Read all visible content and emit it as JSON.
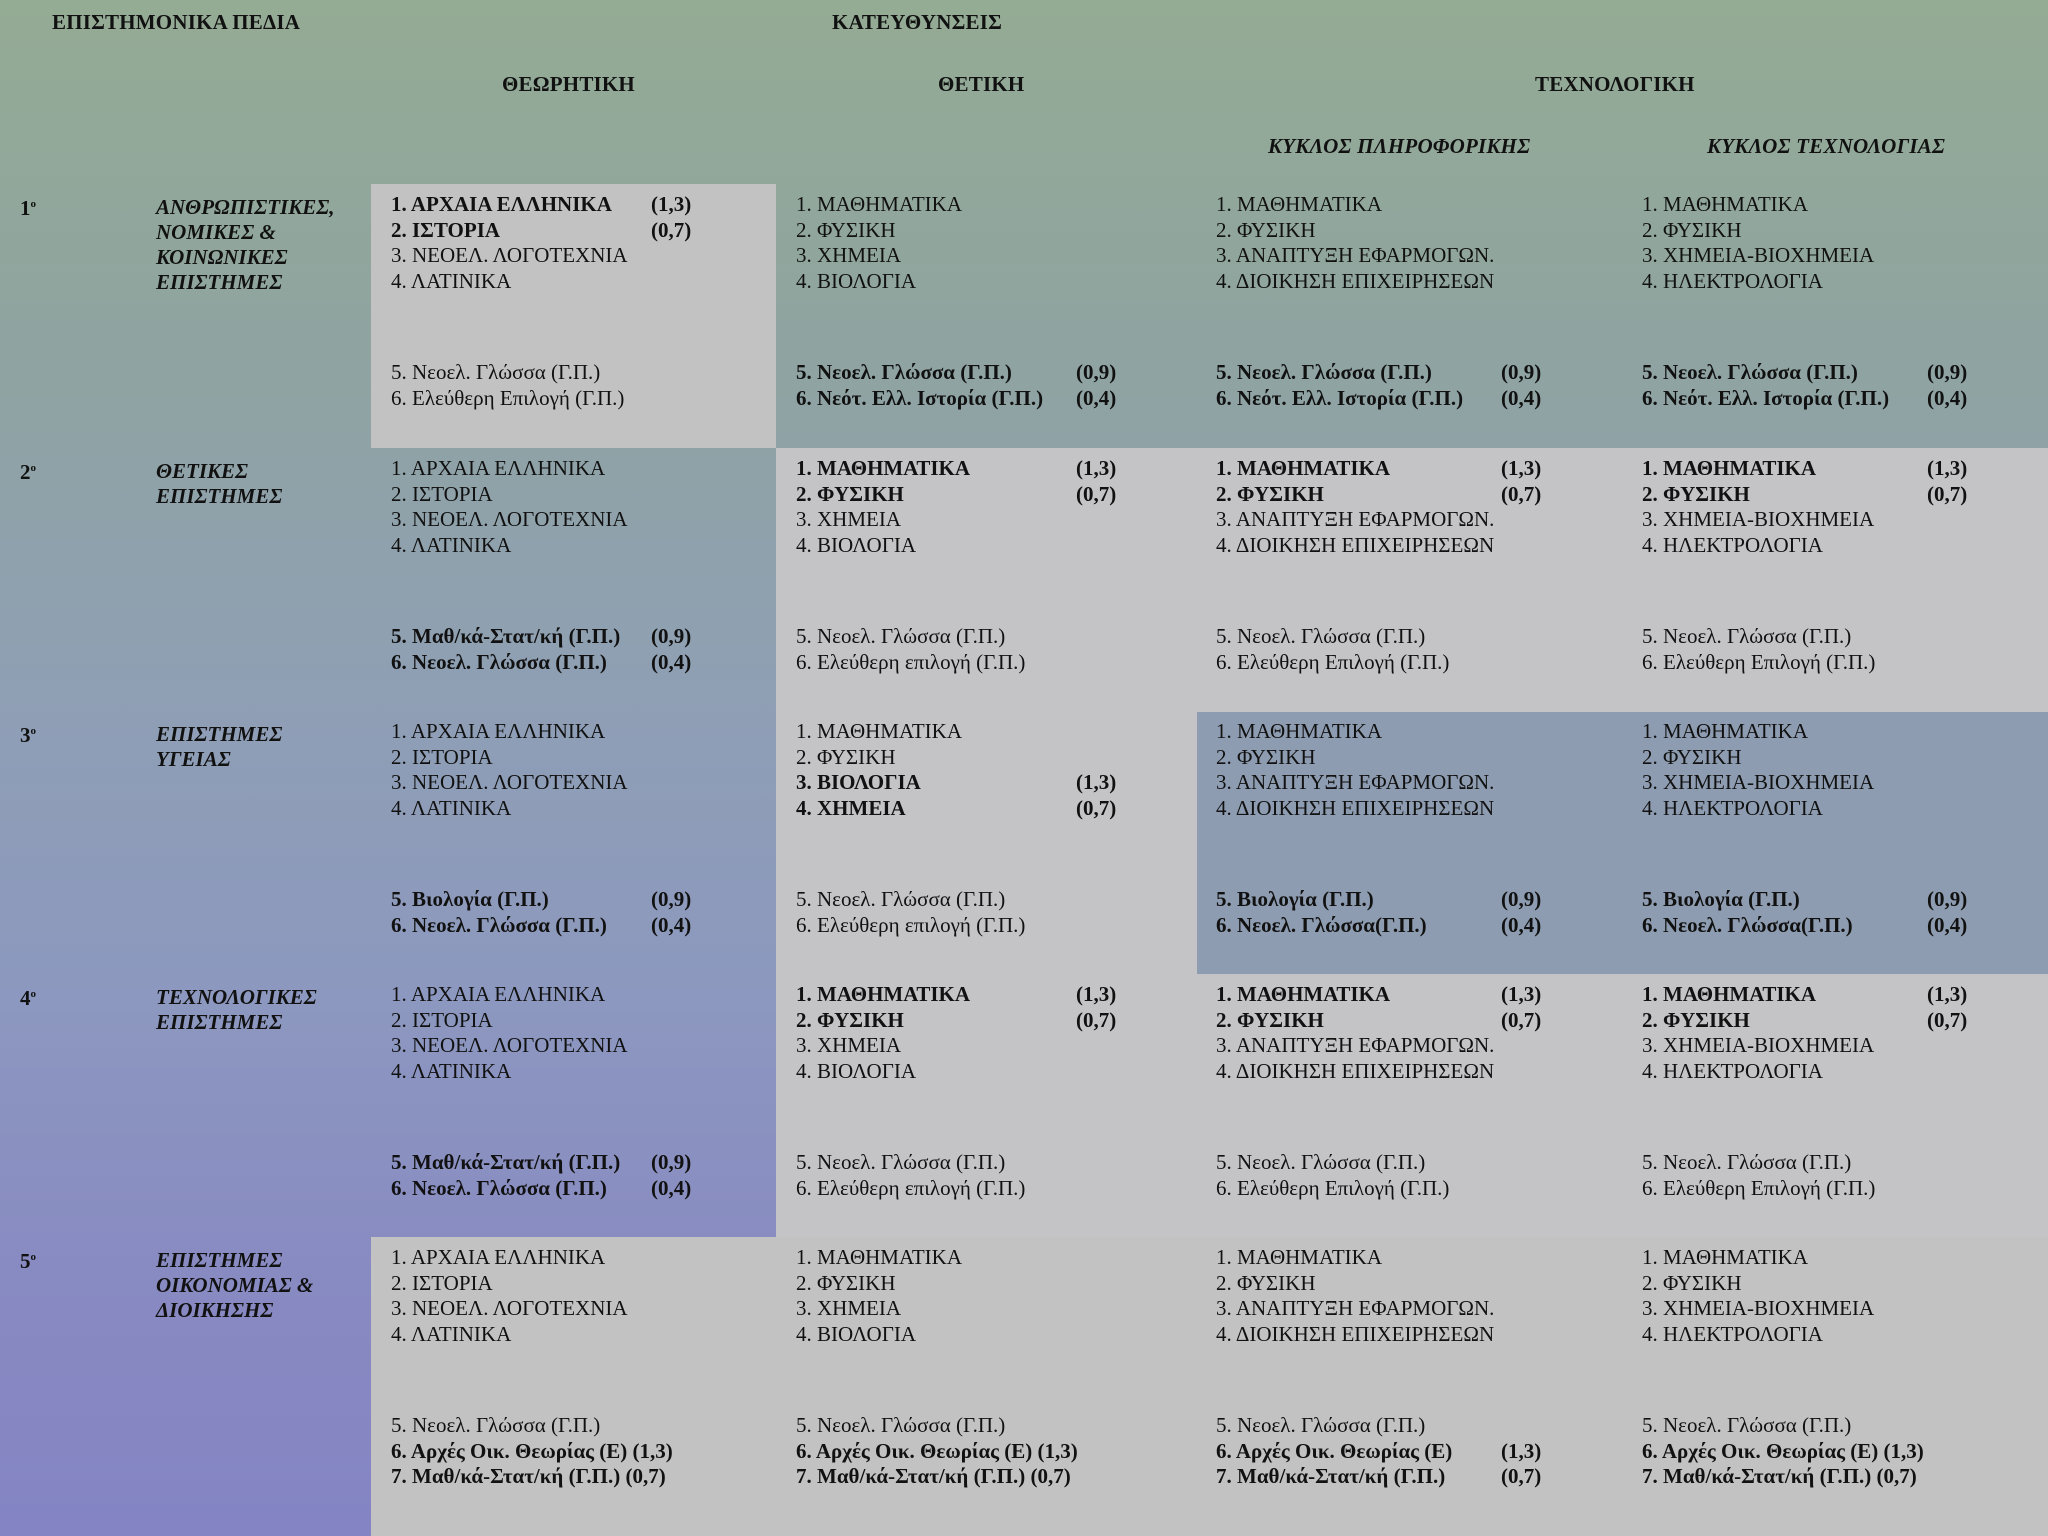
{
  "header": {
    "fields_title": "ΕΠΙΣΤΗΜΟΝΙΚΑ ΠΕΔΙΑ",
    "directions_title": "ΚΑΤΕΥΘΥΝΣΕΙΣ",
    "theoretical": "ΘΕΩΡΗΤΙΚΗ",
    "positive": "ΘΕΤΙΚΗ",
    "technological": "ΤΕΧΝΟΛΟΓΙΚΗ",
    "cycle_informatics": "ΚΥΚΛΟΣ ΠΛΗΡΟΦΟΡΙΚΗΣ",
    "cycle_technology": "ΚΥΚΛΟΣ ΤΕΧΝΟΛΟΓΙΑΣ"
  },
  "rows": [
    {
      "number": "1",
      "field": [
        "ΑΝΘΡΩΠΙΣΤΙΚΕΣ,",
        "ΝΟΜΙΚΕΣ &",
        "ΚΟΙΝΩΝΙΚΕΣ",
        "ΕΠΙΣΤΗΜΕΣ"
      ],
      "cells": [
        {
          "top": [
            {
              "t": "1. ΑΡΧΑΙΑ ΕΛΛΗΝΙΚΑ",
              "w": "(1,3)",
              "b": true
            },
            {
              "t": "2. ΙΣΤΟΡΙΑ",
              "w": "(0,7)",
              "b": true
            },
            {
              "t": "3. ΝΕΟΕΛ. ΛΟΓΟΤΕΧΝΙΑ",
              "w": "",
              "b": false
            },
            {
              "t": "4. ΛΑΤΙΝΙΚΑ",
              "w": "",
              "b": false
            }
          ],
          "bottom": [
            {
              "t": "5. Νεοελ. Γλώσσα (Γ.Π.)",
              "w": "",
              "b": false
            },
            {
              "t": "6. Ελεύθερη Επιλογή (Γ.Π.)",
              "w": "",
              "b": false
            }
          ]
        },
        {
          "top": [
            {
              "t": "1. ΜΑΘΗΜΑΤΙΚΑ",
              "w": "",
              "b": false
            },
            {
              "t": "2. ΦΥΣΙΚΗ",
              "w": "",
              "b": false
            },
            {
              "t": "3. ΧΗΜΕΙΑ",
              "w": "",
              "b": false
            },
            {
              "t": "4. ΒΙΟΛΟΓΙΑ",
              "w": "",
              "b": false
            }
          ],
          "bottom": [
            {
              "t": "5. Νεοελ. Γλώσσα (Γ.Π.)",
              "w": "(0,9)",
              "b": true
            },
            {
              "t": "6. Νεότ. Ελλ. Ιστορία (Γ.Π.)",
              "w": "(0,4)",
              "b": true
            }
          ]
        },
        {
          "top": [
            {
              "t": "1. ΜΑΘΗΜΑΤΙΚΑ",
              "w": "",
              "b": false
            },
            {
              "t": "2. ΦΥΣΙΚΗ",
              "w": "",
              "b": false
            },
            {
              "t": "3. ΑΝΑΠΤΥΞΗ ΕΦΑΡΜΟΓΩΝ.",
              "w": "",
              "b": false
            },
            {
              "t": "4. ΔΙΟΙΚΗΣΗ ΕΠΙΧΕΙΡΗΣΕΩΝ",
              "w": "",
              "b": false
            }
          ],
          "bottom": [
            {
              "t": "5. Νεοελ. Γλώσσα (Γ.Π.)",
              "w": "(0,9)",
              "b": true
            },
            {
              "t": "6. Νεότ. Ελλ. Ιστορία (Γ.Π.)",
              "w": "(0,4)",
              "b": true
            }
          ]
        },
        {
          "top": [
            {
              "t": "1. ΜΑΘΗΜΑΤΙΚΑ",
              "w": "",
              "b": false
            },
            {
              "t": "2. ΦΥΣΙΚΗ",
              "w": "",
              "b": false
            },
            {
              "t": "3. ΧΗΜΕΙΑ-ΒΙΟΧΗΜΕΙΑ",
              "w": "",
              "b": false
            },
            {
              "t": "4. ΗΛΕΚΤΡΟΛΟΓΙΑ",
              "w": "",
              "b": false
            }
          ],
          "bottom": [
            {
              "t": "5. Νεοελ. Γλώσσα (Γ.Π.)",
              "w": "(0,9)",
              "b": true
            },
            {
              "t": "6. Νεότ. Ελλ. Ιστορία (Γ.Π.)",
              "w": "(0,4)",
              "b": true
            }
          ]
        }
      ]
    },
    {
      "number": "2",
      "field": [
        "ΘΕΤΙΚΕΣ",
        "ΕΠΙΣΤΗΜΕΣ"
      ],
      "cells": [
        {
          "top": [
            {
              "t": "1. ΑΡΧΑΙΑ ΕΛΛΗΝΙΚΑ",
              "w": "",
              "b": false
            },
            {
              "t": "2. ΙΣΤΟΡΙΑ",
              "w": "",
              "b": false
            },
            {
              "t": "3. ΝΕΟΕΛ. ΛΟΓΟΤΕΧΝΙΑ",
              "w": "",
              "b": false
            },
            {
              "t": "4. ΛΑΤΙΝΙΚΑ",
              "w": "",
              "b": false
            }
          ],
          "bottom": [
            {
              "t": "5. Μαθ/κά-Στατ/κή (Γ.Π.)",
              "w": "(0,9)",
              "b": true
            },
            {
              "t": "6. Νεοελ. Γλώσσα (Γ.Π.)",
              "w": "(0,4)",
              "b": true
            }
          ]
        },
        {
          "top": [
            {
              "t": "1. ΜΑΘΗΜΑΤΙΚΑ",
              "w": "(1,3)",
              "b": true
            },
            {
              "t": "2. ΦΥΣΙΚΗ",
              "w": "(0,7)",
              "b": true
            },
            {
              "t": "3. ΧΗΜΕΙΑ",
              "w": "",
              "b": false
            },
            {
              "t": "4. ΒΙΟΛΟΓΙΑ",
              "w": "",
              "b": false
            }
          ],
          "bottom": [
            {
              "t": "5. Νεοελ. Γλώσσα (Γ.Π.)",
              "w": "",
              "b": false
            },
            {
              "t": "6. Ελεύθερη επιλογή (Γ.Π.)",
              "w": "",
              "b": false
            }
          ]
        },
        {
          "top": [
            {
              "t": "1. ΜΑΘΗΜΑΤΙΚΑ",
              "w": "(1,3)",
              "b": true
            },
            {
              "t": "2. ΦΥΣΙΚΗ",
              "w": "(0,7)",
              "b": true
            },
            {
              "t": "3. ΑΝΑΠΤΥΞΗ ΕΦΑΡΜΟΓΩΝ.",
              "w": "",
              "b": false
            },
            {
              "t": "4. ΔΙΟΙΚΗΣΗ ΕΠΙΧΕΙΡΗΣΕΩΝ",
              "w": "",
              "b": false
            }
          ],
          "bottom": [
            {
              "t": "5. Νεοελ. Γλώσσα (Γ.Π.)",
              "w": "",
              "b": false
            },
            {
              "t": "6. Ελεύθερη Επιλογή (Γ.Π.)",
              "w": "",
              "b": false
            }
          ]
        },
        {
          "top": [
            {
              "t": "1. ΜΑΘΗΜΑΤΙΚΑ",
              "w": "(1,3)",
              "b": true
            },
            {
              "t": "2. ΦΥΣΙΚΗ",
              "w": "(0,7)",
              "b": true
            },
            {
              "t": "3. ΧΗΜΕΙΑ-ΒΙΟΧΗΜΕΙΑ",
              "w": "",
              "b": false
            },
            {
              "t": "4. ΗΛΕΚΤΡΟΛΟΓΙΑ",
              "w": "",
              "b": false
            }
          ],
          "bottom": [
            {
              "t": "5. Νεοελ. Γλώσσα (Γ.Π.)",
              "w": "",
              "b": false
            },
            {
              "t": "6. Ελεύθερη Επιλογή (Γ.Π.)",
              "w": "",
              "b": false
            }
          ]
        }
      ]
    },
    {
      "number": "3",
      "field": [
        "ΕΠΙΣΤΗΜΕΣ",
        "ΥΓΕΙΑΣ"
      ],
      "cells": [
        {
          "top": [
            {
              "t": "1. ΑΡΧΑΙΑ ΕΛΛΗΝΙΚΑ",
              "w": "",
              "b": false
            },
            {
              "t": "2. ΙΣΤΟΡΙΑ",
              "w": "",
              "b": false
            },
            {
              "t": "3. ΝΕΟΕΛ. ΛΟΓΟΤΕΧΝΙΑ",
              "w": "",
              "b": false
            },
            {
              "t": "4. ΛΑΤΙΝΙΚΑ",
              "w": "",
              "b": false
            }
          ],
          "bottom": [
            {
              "t": "5. Βιολογία (Γ.Π.)",
              "w": "(0,9)",
              "b": true
            },
            {
              "t": "6. Νεοελ. Γλώσσα (Γ.Π.)",
              "w": "(0,4)",
              "b": true
            }
          ]
        },
        {
          "top": [
            {
              "t": "1. ΜΑΘΗΜΑΤΙΚΑ",
              "w": "",
              "b": false
            },
            {
              "t": "2. ΦΥΣΙΚΗ",
              "w": "",
              "b": false
            },
            {
              "t": "3. ΒΙΟΛΟΓΙΑ",
              "w": "(1,3)",
              "b": true
            },
            {
              "t": "4. ΧΗΜΕΙΑ",
              "w": "(0,7)",
              "b": true
            }
          ],
          "bottom": [
            {
              "t": "5. Νεοελ. Γλώσσα (Γ.Π.)",
              "w": "",
              "b": false
            },
            {
              "t": "6. Ελεύθερη επιλογή (Γ.Π.)",
              "w": "",
              "b": false
            }
          ]
        },
        {
          "top": [
            {
              "t": "1. ΜΑΘΗΜΑΤΙΚΑ",
              "w": "",
              "b": false
            },
            {
              "t": "2. ΦΥΣΙΚΗ",
              "w": "",
              "b": false
            },
            {
              "t": "3. ΑΝΑΠΤΥΞΗ ΕΦΑΡΜΟΓΩΝ.",
              "w": "",
              "b": false
            },
            {
              "t": "4. ΔΙΟΙΚΗΣΗ ΕΠΙΧΕΙΡΗΣΕΩΝ",
              "w": "",
              "b": false
            }
          ],
          "bottom": [
            {
              "t": "5. Βιολογία (Γ.Π.)",
              "w": "(0,9)",
              "b": true
            },
            {
              "t": "6. Νεοελ. Γλώσσα(Γ.Π.)",
              "w": "(0,4)",
              "b": true
            }
          ]
        },
        {
          "top": [
            {
              "t": "1. ΜΑΘΗΜΑΤΙΚΑ",
              "w": "",
              "b": false
            },
            {
              "t": "2. ΦΥΣΙΚΗ",
              "w": "",
              "b": false
            },
            {
              "t": "3. ΧΗΜΕΙΑ-ΒΙΟΧΗΜΕΙΑ",
              "w": "",
              "b": false
            },
            {
              "t": "4. ΗΛΕΚΤΡΟΛΟΓΙΑ",
              "w": "",
              "b": false
            }
          ],
          "bottom": [
            {
              "t": "5. Βιολογία (Γ.Π.)",
              "w": "(0,9)",
              "b": true
            },
            {
              "t": "6. Νεοελ. Γλώσσα(Γ.Π.)",
              "w": "(0,4)",
              "b": true
            }
          ]
        }
      ]
    },
    {
      "number": "4",
      "field": [
        "ΤΕΧΝΟΛΟΓΙΚΕΣ",
        "ΕΠΙΣΤΗΜΕΣ"
      ],
      "cells": [
        {
          "top": [
            {
              "t": "1. ΑΡΧΑΙΑ ΕΛΛΗΝΙΚΑ",
              "w": "",
              "b": false
            },
            {
              "t": "2. ΙΣΤΟΡΙΑ",
              "w": "",
              "b": false
            },
            {
              "t": "3. ΝΕΟΕΛ. ΛΟΓΟΤΕΧΝΙΑ",
              "w": "",
              "b": false
            },
            {
              "t": "4. ΛΑΤΙΝΙΚΑ",
              "w": "",
              "b": false
            }
          ],
          "bottom": [
            {
              "t": "5. Μαθ/κά-Στατ/κή (Γ.Π.)",
              "w": "(0,9)",
              "b": true
            },
            {
              "t": "6. Νεοελ. Γλώσσα (Γ.Π.)",
              "w": "(0,4)",
              "b": true
            }
          ]
        },
        {
          "top": [
            {
              "t": "1. ΜΑΘΗΜΑΤΙΚΑ",
              "w": "(1,3)",
              "b": true
            },
            {
              "t": "2. ΦΥΣΙΚΗ",
              "w": "(0,7)",
              "b": true
            },
            {
              "t": "3. ΧΗΜΕΙΑ",
              "w": "",
              "b": false
            },
            {
              "t": "4. ΒΙΟΛΟΓΙΑ",
              "w": "",
              "b": false
            }
          ],
          "bottom": [
            {
              "t": "5. Νεοελ. Γλώσσα (Γ.Π.)",
              "w": "",
              "b": false
            },
            {
              "t": "6. Ελεύθερη επιλογή (Γ.Π.)",
              "w": "",
              "b": false
            }
          ]
        },
        {
          "top": [
            {
              "t": "1. ΜΑΘΗΜΑΤΙΚΑ",
              "w": "(1,3)",
              "b": true
            },
            {
              "t": "2. ΦΥΣΙΚΗ",
              "w": "(0,7)",
              "b": true
            },
            {
              "t": "3. ΑΝΑΠΤΥΞΗ ΕΦΑΡΜΟΓΩΝ.",
              "w": "",
              "b": false
            },
            {
              "t": "4. ΔΙΟΙΚΗΣΗ ΕΠΙΧΕΙΡΗΣΕΩΝ",
              "w": "",
              "b": false
            }
          ],
          "bottom": [
            {
              "t": "5. Νεοελ. Γλώσσα (Γ.Π.)",
              "w": "",
              "b": false
            },
            {
              "t": "6. Ελεύθερη Επιλογή (Γ.Π.)",
              "w": "",
              "b": false
            }
          ]
        },
        {
          "top": [
            {
              "t": "1. ΜΑΘΗΜΑΤΙΚΑ",
              "w": "(1,3)",
              "b": true
            },
            {
              "t": "2. ΦΥΣΙΚΗ",
              "w": "(0,7)",
              "b": true
            },
            {
              "t": "3. ΧΗΜΕΙΑ-ΒΙΟΧΗΜΕΙΑ",
              "w": "",
              "b": false
            },
            {
              "t": "4. ΗΛΕΚΤΡΟΛΟΓΙΑ",
              "w": "",
              "b": false
            }
          ],
          "bottom": [
            {
              "t": "5. Νεοελ. Γλώσσα  (Γ.Π.)",
              "w": "",
              "b": false
            },
            {
              "t": "6. Ελεύθερη Επιλογή (Γ.Π.)",
              "w": "",
              "b": false
            }
          ]
        }
      ]
    },
    {
      "number": "5",
      "field": [
        "ΕΠΙΣΤΗΜΕΣ",
        "ΟΙΚΟΝΟΜΙΑΣ &",
        "ΔΙΟΙΚΗΣΗΣ"
      ],
      "cells": [
        {
          "top": [
            {
              "t": "1. ΑΡΧΑΙΑ ΕΛΛΗΝΙΚΑ",
              "w": "",
              "b": false
            },
            {
              "t": "2. ΙΣΤΟΡΙΑ",
              "w": "",
              "b": false
            },
            {
              "t": "3. ΝΕΟΕΛ. ΛΟΓΟΤΕΧΝΙΑ",
              "w": "",
              "b": false
            },
            {
              "t": "4. ΛΑΤΙΝΙΚΑ",
              "w": "",
              "b": false
            }
          ],
          "bottom": [
            {
              "t": "5. Νεοελ. Γλώσσα  (Γ.Π.)",
              "w": "",
              "b": false
            },
            {
              "t": "6. Αρχές Οικ. Θεωρίας (Ε) (1,3)",
              "w": "",
              "b": true
            },
            {
              "t": "7. Μαθ/κά-Στατ/κή (Γ.Π.) (0,7)",
              "w": "",
              "b": true
            }
          ]
        },
        {
          "top": [
            {
              "t": "1. ΜΑΘΗΜΑΤΙΚΑ",
              "w": "",
              "b": false
            },
            {
              "t": "2. ΦΥΣΙΚΗ",
              "w": "",
              "b": false
            },
            {
              "t": "3. ΧΗΜΕΙΑ",
              "w": "",
              "b": false
            },
            {
              "t": "4. ΒΙΟΛΟΓΙΑ",
              "w": "",
              "b": false
            }
          ],
          "bottom": [
            {
              "t": "5. Νεοελ. Γλώσσα  (Γ.Π.)",
              "w": "",
              "b": false
            },
            {
              "t": "6. Αρχές Οικ. Θεωρίας (Ε) (1,3)",
              "w": "",
              "b": true
            },
            {
              "t": "7. Μαθ/κά-Στατ/κή (Γ.Π.)  (0,7)",
              "w": "",
              "b": true
            }
          ]
        },
        {
          "top": [
            {
              "t": "1. ΜΑΘΗΜΑΤΙΚΑ",
              "w": "",
              "b": false
            },
            {
              "t": "2. ΦΥΣΙΚΗ",
              "w": "",
              "b": false
            },
            {
              "t": "3. ΑΝΑΠΤΥΞΗ ΕΦΑΡΜΟΓΩΝ.",
              "w": "",
              "b": false
            },
            {
              "t": "4. ΔΙΟΙΚΗΣΗ ΕΠΙΧΕΙΡΗΣΕΩΝ",
              "w": "",
              "b": false
            }
          ],
          "bottom": [
            {
              "t": "5. Νεοελ. Γλώσσα  (Γ.Π.)",
              "w": "",
              "b": false
            },
            {
              "t": "6. Αρχές Οικ. Θεωρίας (Ε)",
              "w": "(1,3)",
              "b": true
            },
            {
              "t": "7. Μαθ/κά-Στατ/κή (Γ.Π.)",
              "w": "(0,7)",
              "b": true
            }
          ]
        },
        {
          "top": [
            {
              "t": "1. ΜΑΘΗΜΑΤΙΚΑ",
              "w": "",
              "b": false
            },
            {
              "t": "2. ΦΥΣΙΚΗ",
              "w": "",
              "b": false
            },
            {
              "t": "3. ΧΗΜΕΙΑ-ΒΙΟΧΗΜΕΙΑ",
              "w": "",
              "b": false
            },
            {
              "t": "4. ΗΛΕΚΤΡΟΛΟΓΙΑ",
              "w": "",
              "b": false
            }
          ],
          "bottom": [
            {
              "t": "5. Νεοελ. Γλώσσα  (Γ.Π.)",
              "w": "",
              "b": false
            },
            {
              "t": "6. Αρχές Οικ. Θεωρίας (Ε)  (1,3)",
              "w": "",
              "b": true
            },
            {
              "t": "7. Μαθ/κά-Στατ/κή (Γ.Π.)  (0,7)",
              "w": "",
              "b": true
            }
          ]
        }
      ]
    }
  ]
}
